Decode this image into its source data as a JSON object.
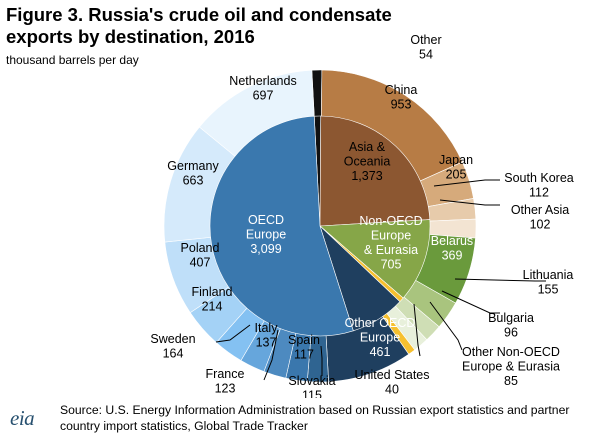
{
  "header": {
    "title": "Figure 3. Russia's crude oil and condensate exports by destination, 2016",
    "subtitle": "thousand barrels per day"
  },
  "chart_data": {
    "type": "pie",
    "inner": [
      {
        "name": "Other",
        "value": 54,
        "color": "#111111"
      },
      {
        "name": "Asia & Oceania",
        "value": 1373,
        "color": "#8c5731"
      },
      {
        "name": "Non-OECD Europe & Eurasia",
        "value": 705,
        "color": "#86a648"
      },
      {
        "name": "United States",
        "value": 40,
        "color": "#f6c02f"
      },
      {
        "name": "Other OECD Europe",
        "value": 461,
        "color": "#1f3f5f"
      },
      {
        "name": "OECD Europe",
        "value": 3099,
        "color": "#3a78ae"
      }
    ],
    "outer": [
      {
        "name": "Other",
        "value": 54,
        "color": "#111111"
      },
      {
        "name": "China",
        "value": 953,
        "color": "#b77c45"
      },
      {
        "name": "Japan",
        "value": 205,
        "color": "#d6aa7b"
      },
      {
        "name": "South Korea",
        "value": 112,
        "color": "#e7cbab"
      },
      {
        "name": "Other Asia",
        "value": 102,
        "color": "#f3e4d2"
      },
      {
        "name": "Belarus",
        "value": 369,
        "color": "#6a9a3c"
      },
      {
        "name": "Lithuania",
        "value": 155,
        "color": "#a9c47e"
      },
      {
        "name": "Bulgaria",
        "value": 96,
        "color": "#cfdeb5"
      },
      {
        "name": "Other Non-OECD Europe & Eurasia",
        "value": 85,
        "color": "#e8f0db"
      },
      {
        "name": "United States",
        "value": 40,
        "color": "#f6c02f"
      },
      {
        "name": "Other OECD Europe",
        "value": 461,
        "color": "#1f3f5f"
      },
      {
        "name": "Slovakia",
        "value": 115,
        "color": "#2f6491"
      },
      {
        "name": "Spain",
        "value": 117,
        "color": "#3a77ad"
      },
      {
        "name": "France",
        "value": 123,
        "color": "#4d8ac0"
      },
      {
        "name": "Italy",
        "value": 137,
        "color": "#66a6dc"
      },
      {
        "name": "Sweden",
        "value": 164,
        "color": "#84c1f2"
      },
      {
        "name": "Finland",
        "value": 214,
        "color": "#a4d2f6"
      },
      {
        "name": "Poland",
        "value": 407,
        "color": "#bfdff9"
      },
      {
        "name": "Germany",
        "value": 663,
        "color": "#d5eafb"
      },
      {
        "name": "Netherlands",
        "value": 697,
        "color": "#e8f4fd"
      }
    ],
    "inner_labels": [
      {
        "lines": [
          "Asia &",
          "Oceania",
          "1,373"
        ]
      },
      {
        "lines": [
          "Non-OECD",
          "Europe",
          "& Eurasia",
          "705"
        ]
      },
      {
        "lines": [
          "Other OECD",
          "Europe",
          "461"
        ]
      },
      {
        "lines": [
          "OECD",
          "Europe",
          "3,099"
        ]
      }
    ],
    "outer_labels": [
      {
        "lines": [
          "Other",
          "54"
        ]
      },
      {
        "lines": [
          "China",
          "953"
        ]
      },
      {
        "lines": [
          "Japan",
          "205"
        ]
      },
      {
        "lines": [
          "South Korea",
          "112"
        ]
      },
      {
        "lines": [
          "Other Asia",
          "102"
        ]
      },
      {
        "lines": [
          "Belarus",
          "369"
        ]
      },
      {
        "lines": [
          "Lithuania",
          "155"
        ]
      },
      {
        "lines": [
          "Bulgaria",
          "96"
        ]
      },
      {
        "lines": [
          "Other Non-OECD",
          "Europe & Eurasia",
          "85"
        ]
      },
      {
        "lines": [
          "United States",
          "40"
        ]
      },
      {
        "lines": [
          "Slovakia",
          "115"
        ]
      },
      {
        "lines": [
          "Spain",
          "117"
        ]
      },
      {
        "lines": [
          "France",
          "123"
        ]
      },
      {
        "lines": [
          "Italy",
          "137"
        ]
      },
      {
        "lines": [
          "Sweden",
          "164"
        ]
      },
      {
        "lines": [
          "Finland",
          "214"
        ]
      },
      {
        "lines": [
          "Poland",
          "407"
        ]
      },
      {
        "lines": [
          "Germany",
          "663"
        ]
      },
      {
        "lines": [
          "Netherlands",
          "697"
        ]
      }
    ]
  },
  "footer": {
    "logo": "eia",
    "source": "Source: U.S. Energy Information Administration based on Russian export statistics and partner country import statistics, Global Trade Tracker"
  }
}
